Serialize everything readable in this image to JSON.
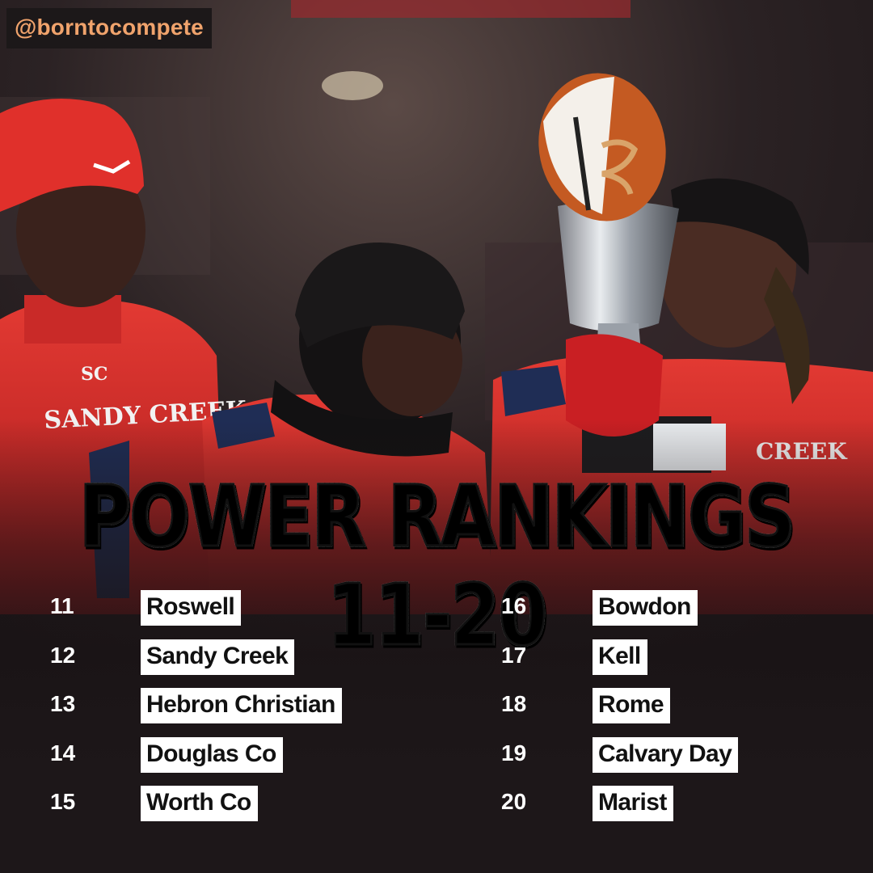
{
  "handle": "@borntocompete",
  "headline": "POWER RANKINGS 11-20",
  "rankings": {
    "left": [
      {
        "rank": "11",
        "team": "Roswell"
      },
      {
        "rank": "12",
        "team": "Sandy Creek"
      },
      {
        "rank": "13",
        "team": "Hebron Christian"
      },
      {
        "rank": "14",
        "team": "Douglas Co"
      },
      {
        "rank": "15",
        "team": "Worth Co"
      }
    ],
    "right": [
      {
        "rank": "16",
        "team": "Bowdon"
      },
      {
        "rank": "17",
        "team": "Kell"
      },
      {
        "rank": "18",
        "team": "Rome"
      },
      {
        "rank": "19",
        "team": "Calvary Day"
      },
      {
        "rank": "20",
        "team": "Marist"
      }
    ]
  },
  "photo": {
    "jersey_text_left": "SANDY CREEK",
    "jersey_text_right": "CREEK",
    "colors": {
      "jersey_red": "#d8262a",
      "navy": "#1f2d55",
      "ball_brown": "#c45a22"
    }
  }
}
